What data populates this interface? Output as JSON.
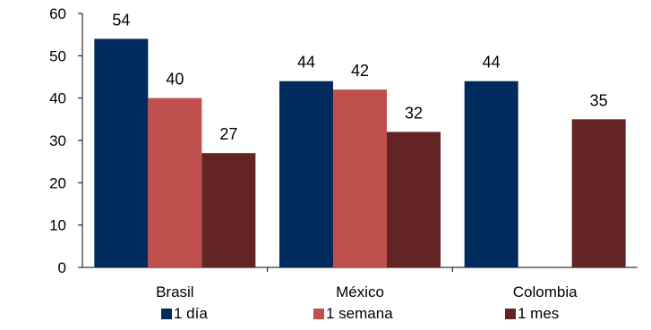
{
  "chart_data": {
    "type": "bar",
    "categories": [
      "Brasil",
      "México",
      "Colombia"
    ],
    "series": [
      {
        "name": "1 día",
        "color": "#002B5C",
        "values": [
          54,
          44,
          44
        ]
      },
      {
        "name": "1 semana",
        "color": "#C0504D",
        "values": [
          40,
          42,
          null
        ]
      },
      {
        "name": "1 mes",
        "color": "#632523",
        "values": [
          27,
          32,
          35
        ]
      }
    ],
    "ylim": [
      0,
      60
    ],
    "yticks": [
      0,
      10,
      20,
      30,
      40,
      50,
      60
    ],
    "grid": false,
    "legend": "bottom"
  }
}
